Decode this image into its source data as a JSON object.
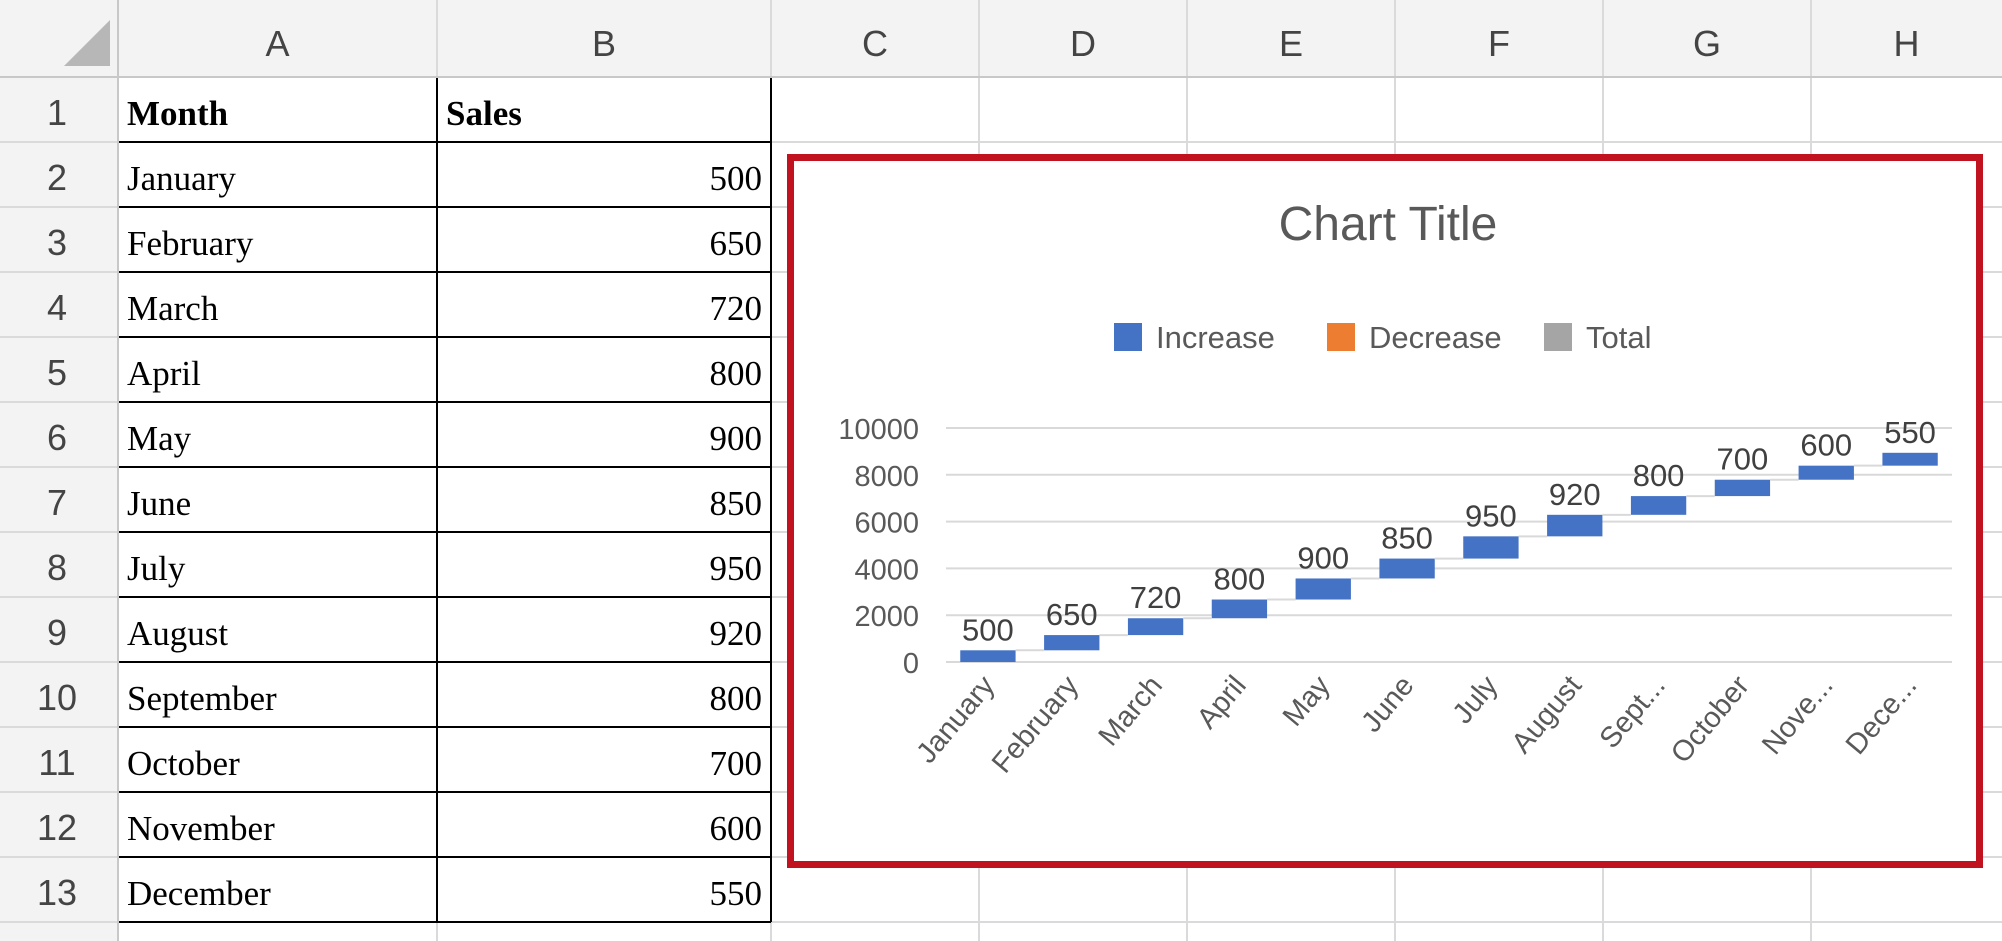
{
  "sheet": {
    "column_headers": [
      "A",
      "B",
      "C",
      "D",
      "E",
      "F",
      "G",
      "H"
    ],
    "row_headers": [
      "1",
      "2",
      "3",
      "4",
      "5",
      "6",
      "7",
      "8",
      "9",
      "10",
      "11",
      "12",
      "13"
    ],
    "table": {
      "headers": [
        "Month",
        "Sales"
      ],
      "rows": [
        [
          "January",
          "500"
        ],
        [
          "February",
          "650"
        ],
        [
          "March",
          "720"
        ],
        [
          "April",
          "800"
        ],
        [
          "May",
          "900"
        ],
        [
          "June",
          "850"
        ],
        [
          "July",
          "950"
        ],
        [
          "August",
          "920"
        ],
        [
          "September",
          "800"
        ],
        [
          "October",
          "700"
        ],
        [
          "November",
          "600"
        ],
        [
          "December",
          "550"
        ]
      ]
    }
  },
  "chart_data": {
    "type": "bar",
    "subtype": "waterfall",
    "title": "Chart Title",
    "legend": {
      "position": "top",
      "items": [
        {
          "name": "Increase",
          "color": "#4472c4"
        },
        {
          "name": "Decrease",
          "color": "#ed7d31"
        },
        {
          "name": "Total",
          "color": "#a5a5a5"
        }
      ]
    },
    "categories": [
      "January",
      "February",
      "March",
      "April",
      "May",
      "June",
      "July",
      "August",
      "September",
      "October",
      "November",
      "December"
    ],
    "category_labels": [
      "January",
      "February",
      "March",
      "April",
      "May",
      "June",
      "July",
      "August",
      "Sept...",
      "October",
      "Nove...",
      "Dece..."
    ],
    "values": [
      500,
      650,
      720,
      800,
      900,
      850,
      950,
      920,
      800,
      700,
      600,
      550
    ],
    "data_labels": [
      "500",
      "650",
      "720",
      "800",
      "900",
      "850",
      "950",
      "920",
      "800",
      "700",
      "600",
      "550"
    ],
    "ylim": [
      0,
      10000
    ],
    "yticks": [
      "0",
      "2000",
      "4000",
      "6000",
      "8000",
      "10000"
    ],
    "grid": true,
    "colors": {
      "increase": "#4472c4",
      "connector": "#d9d9d9",
      "frame": "#c0121f"
    }
  }
}
